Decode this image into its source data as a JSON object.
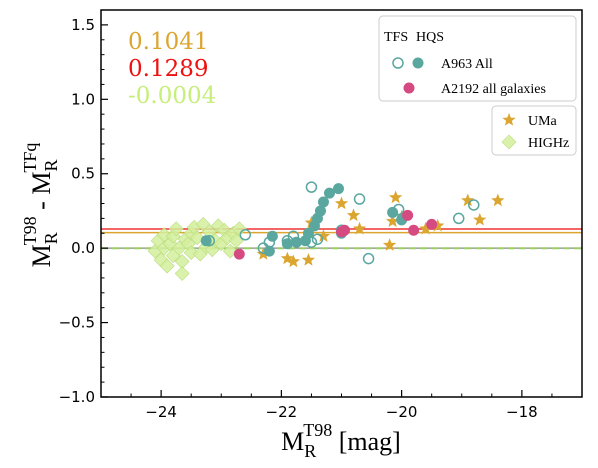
{
  "chart_data": {
    "type": "scatter",
    "xlabel": {
      "base": "M",
      "sub": "R",
      "sup": "T98",
      "unit": " [mag]"
    },
    "ylabel": {
      "left_base": "M",
      "left_sub": "R",
      "left_sup": "T98",
      "sep": " - ",
      "right_base": "M",
      "right_sub": "R",
      "right_sup": "TFq"
    },
    "xlim": [
      -25,
      -17
    ],
    "ylim": [
      -1.0,
      1.6
    ],
    "x_ticks": [
      -24,
      -22,
      -20,
      -18
    ],
    "x_tick_labels": [
      "−24",
      "−22",
      "−20",
      "−18"
    ],
    "y_ticks": [
      -1.0,
      -0.5,
      0.0,
      0.5,
      1.0,
      1.5
    ],
    "y_tick_labels": [
      "−1.0",
      "−0.5",
      "0.0",
      "0.5",
      "1.0",
      "1.5"
    ],
    "grid": false,
    "offset_annotations": [
      {
        "text": "0.1041",
        "color": "#dba530"
      },
      {
        "text": "0.1289",
        "color": "#ee1111"
      },
      {
        "text": "-0.0004",
        "color": "#c6ef7a"
      }
    ],
    "hlines": [
      {
        "y": 0.1041,
        "color": "#dba530",
        "dash": false
      },
      {
        "y": 0.1289,
        "color": "#ee3333",
        "dash": false
      },
      {
        "y": -0.0004,
        "color": "#9bcc66",
        "dash": true
      }
    ],
    "zero_line": {
      "y": 0.0,
      "color": "#888888"
    },
    "legends": [
      {
        "position": "top-right",
        "header": [
          "TFS",
          "HQS"
        ],
        "entries": [
          {
            "label": "A963 All",
            "markers": [
              "teal-open-circle",
              "teal-filled-circle"
            ]
          },
          {
            "label": "A2192 all galaxies",
            "markers": [
              "pink-filled-circle"
            ]
          }
        ]
      },
      {
        "position": "upper-right",
        "entries": [
          {
            "label": "UMa",
            "markers": [
              "gold-star"
            ]
          },
          {
            "label": "HIGHz",
            "markers": [
              "green-diamond"
            ]
          }
        ]
      }
    ],
    "series": [
      {
        "name": "A963 All (TFS)",
        "marker": "teal-open-circle",
        "color": "#5aa79f",
        "points": [
          [
            -23.2,
            0.05
          ],
          [
            -22.3,
            0.0
          ],
          [
            -22.6,
            0.09
          ],
          [
            -22.2,
            0.04
          ],
          [
            -21.9,
            0.05
          ],
          [
            -21.8,
            0.08
          ],
          [
            -21.5,
            0.41
          ],
          [
            -21.4,
            0.06
          ],
          [
            -21.5,
            0.04
          ],
          [
            -21.0,
            0.12
          ],
          [
            -20.7,
            0.33
          ],
          [
            -20.55,
            -0.07
          ],
          [
            -20.05,
            0.26
          ],
          [
            -19.05,
            0.2
          ],
          [
            -18.8,
            0.29
          ]
        ]
      },
      {
        "name": "A963 All (HQS)",
        "marker": "teal-filled-circle",
        "color": "#5aa79f",
        "points": [
          [
            -23.25,
            0.05
          ],
          [
            -22.2,
            -0.02
          ],
          [
            -22.15,
            0.08
          ],
          [
            -21.9,
            0.03
          ],
          [
            -21.75,
            0.04
          ],
          [
            -21.6,
            0.05
          ],
          [
            -21.55,
            0.1
          ],
          [
            -21.45,
            0.15
          ],
          [
            -21.4,
            0.2
          ],
          [
            -21.35,
            0.25
          ],
          [
            -21.3,
            0.31
          ],
          [
            -21.2,
            0.37
          ],
          [
            -21.05,
            0.4
          ],
          [
            -21.0,
            0.1
          ],
          [
            -20.15,
            0.24
          ],
          [
            -20.0,
            0.19
          ]
        ]
      },
      {
        "name": "A2192 all galaxies",
        "marker": "pink-filled-circle",
        "color": "#d64a82",
        "points": [
          [
            -22.7,
            -0.04
          ],
          [
            -21.0,
            0.11
          ],
          [
            -20.95,
            0.12
          ],
          [
            -19.9,
            0.22
          ],
          [
            -19.8,
            0.12
          ],
          [
            -19.5,
            0.16
          ]
        ]
      },
      {
        "name": "UMa",
        "marker": "gold-star",
        "color": "#dba530",
        "points": [
          [
            -22.3,
            -0.04
          ],
          [
            -21.9,
            -0.07
          ],
          [
            -21.8,
            -0.09
          ],
          [
            -21.55,
            -0.08
          ],
          [
            -21.5,
            0.17
          ],
          [
            -21.3,
            0.08
          ],
          [
            -21.0,
            0.3
          ],
          [
            -20.8,
            0.22
          ],
          [
            -20.7,
            0.13
          ],
          [
            -20.2,
            0.02
          ],
          [
            -20.15,
            0.18
          ],
          [
            -20.1,
            0.34
          ],
          [
            -20.0,
            0.21
          ],
          [
            -19.6,
            0.13
          ],
          [
            -19.4,
            0.15
          ],
          [
            -18.9,
            0.32
          ],
          [
            -18.7,
            0.19
          ],
          [
            -18.4,
            0.32
          ]
        ]
      },
      {
        "name": "HIGHz",
        "marker": "green-diamond",
        "color": "#d4ef9c",
        "points": [
          [
            -24.1,
            -0.02
          ],
          [
            -24.05,
            0.05
          ],
          [
            -24.0,
            -0.08
          ],
          [
            -23.95,
            0.09
          ],
          [
            -23.95,
            0.0
          ],
          [
            -23.9,
            -0.12
          ],
          [
            -23.85,
            0.03
          ],
          [
            -23.8,
            0.08
          ],
          [
            -23.8,
            -0.05
          ],
          [
            -23.75,
            0.13
          ],
          [
            -23.7,
            0.0
          ],
          [
            -23.65,
            -0.09
          ],
          [
            -23.65,
            -0.17
          ],
          [
            -23.6,
            0.06
          ],
          [
            -23.55,
            0.03
          ],
          [
            -23.5,
            0.1
          ],
          [
            -23.5,
            -0.03
          ],
          [
            -23.45,
            0.14
          ],
          [
            -23.4,
            0.07
          ],
          [
            -23.35,
            -0.04
          ],
          [
            -23.3,
            0.16
          ],
          [
            -23.25,
            0.01
          ],
          [
            -23.2,
            0.11
          ],
          [
            -23.15,
            -0.01
          ],
          [
            -23.1,
            0.05
          ],
          [
            -23.05,
            0.15
          ],
          [
            -23.0,
            0.03
          ],
          [
            -22.95,
            0.12
          ],
          [
            -22.9,
            0.07
          ],
          [
            -22.85,
            -0.02
          ],
          [
            -22.8,
            0.1
          ],
          [
            -22.75,
            0.05
          ],
          [
            -22.7,
            0.13
          ]
        ]
      }
    ]
  }
}
